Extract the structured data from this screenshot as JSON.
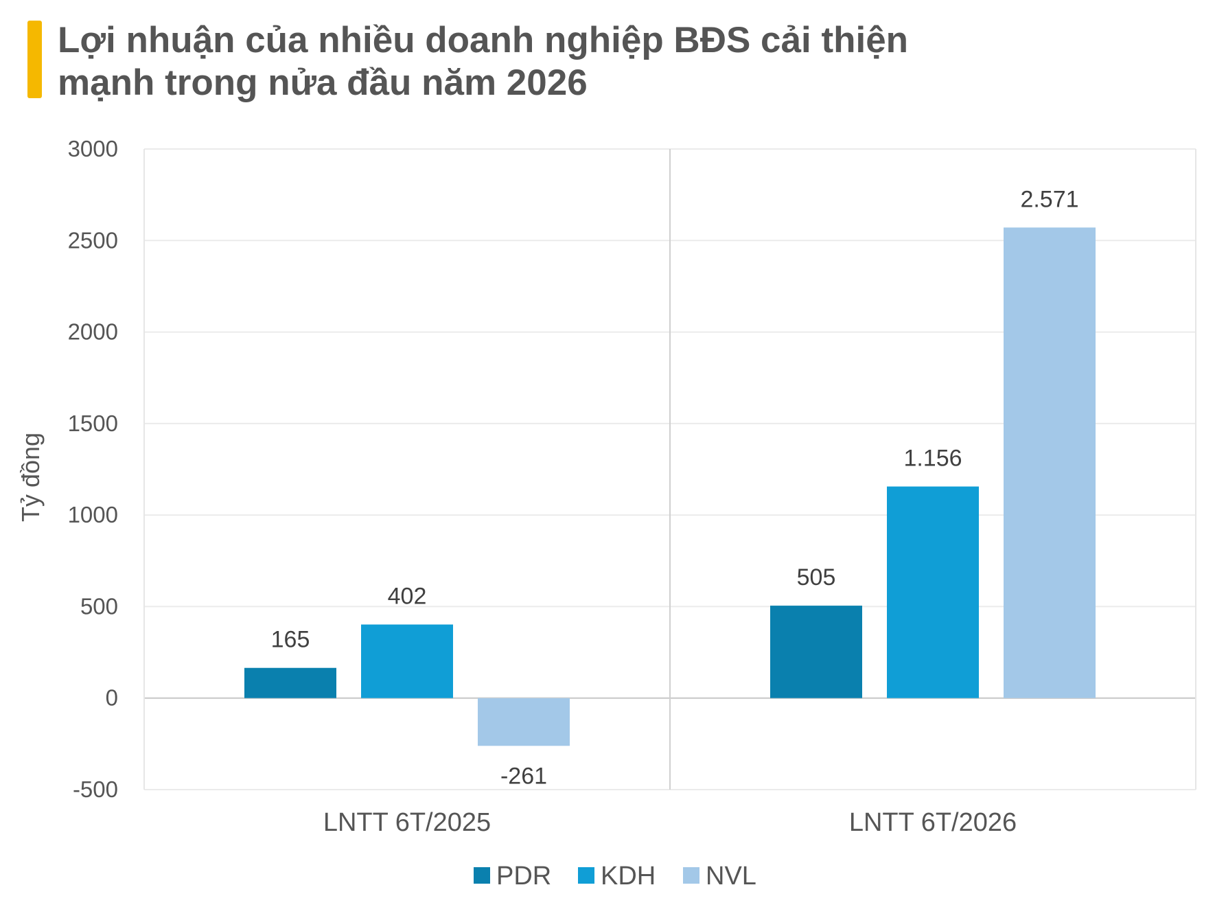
{
  "title_lines": [
    "Lợi nhuận của nhiều doanh nghiệp BĐS cải thiện",
    "mạnh trong nửa đầu năm 2026"
  ],
  "accent_color": "#F5B800",
  "chart_data": {
    "type": "bar",
    "title": "Lợi nhuận của nhiều doanh nghiệp BĐS cải thiện mạnh trong nửa đầu năm 2026",
    "xlabel": "",
    "ylabel": "Tỷ đồng",
    "ylim": [
      -500,
      3000
    ],
    "yticks": [
      -500,
      0,
      500,
      1000,
      1500,
      2000,
      2500,
      3000
    ],
    "categories": [
      "LNTT 6T/2025",
      "LNTT 6T/2026"
    ],
    "series": [
      {
        "name": "PDR",
        "color": "#0A80AE",
        "values": [
          165,
          505
        ],
        "labels": [
          "165",
          "505"
        ]
      },
      {
        "name": "KDH",
        "color": "#109ED6",
        "values": [
          402,
          1156
        ],
        "labels": [
          "402",
          "1.156"
        ]
      },
      {
        "name": "NVL",
        "color": "#A3C8E8",
        "values": [
          -261,
          2571
        ],
        "labels": [
          "-261",
          "2.571"
        ]
      }
    ],
    "grid": true,
    "legend_position": "bottom"
  }
}
